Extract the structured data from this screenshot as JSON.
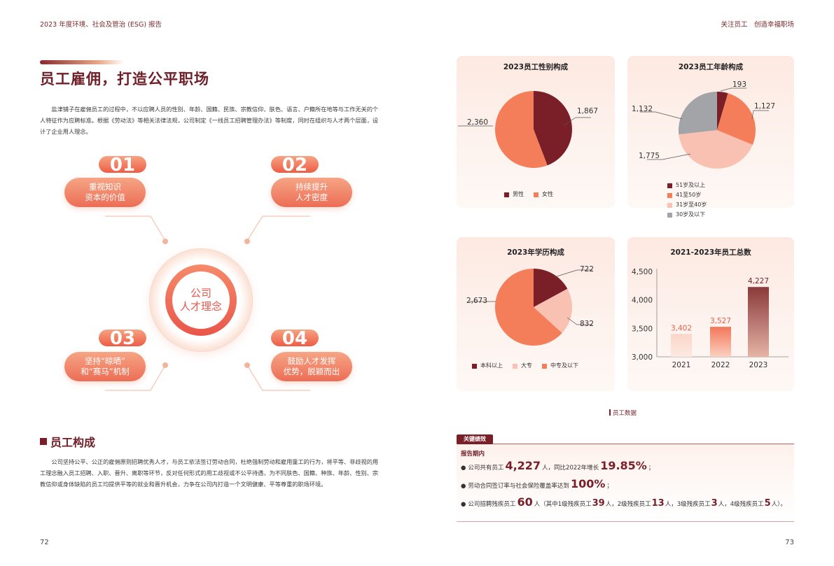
{
  "header": {
    "left": "2023 年度环境、社会及管治 (ESG) 报告",
    "right": "关注员工　创造幸福职场"
  },
  "page_numbers": {
    "left": "72",
    "right": "73"
  },
  "main_title": "员工雇佣，打造公平职场",
  "intro_paragraph": "盐津铺子在雇佣员工的过程中，不以应聘人员的性别、年龄、国籍、民族、宗教信仰、肤色、语言、户籍所在地等与工作无关的个人特征作为应聘标准。根据《劳动法》等相关法律法规，公司制定《一线员工招聘管理办法》等制度，同时在组织与人才两个层面，设计了企业用人理念。",
  "concept": {
    "center_line1": "公司",
    "center_line2": "人才理念",
    "items": [
      {
        "index": "01",
        "line1": "重视知识",
        "line2": "资本的价值"
      },
      {
        "index": "02",
        "line1": "持续提升",
        "line2": "人才密度"
      },
      {
        "index": "03",
        "line1": "坚持“晾晒”",
        "line2": "和“赛马”机制"
      },
      {
        "index": "04",
        "line1": "鼓励人才发挥",
        "line2": "优势，脱颖而出"
      }
    ]
  },
  "section2": {
    "title": "员工构成",
    "paragraph": "公司坚持公平、公正的雇佣原则招聘优秀人才，与员工依法签订劳动合同，杜绝强制劳动和雇用童工的行为，将平等、非歧视的用工理念融入员工招聘、入职、晋升、离职等环节，反对任何形式的用工歧视或不公平待遇，为不同肤色、国籍、种族、年龄、性别、宗教信仰或身体缺陷的员工均提供平等的就业和晋升机会，力争在公司内打造一个文明健康、平等尊重的职场环境。"
  },
  "colors": {
    "dark_red": "#7a1e28",
    "coral": "#f47e5a",
    "light_pink": "#f9c1b2",
    "gray": "#a3a4a8"
  },
  "chart_data": [
    {
      "type": "pie",
      "title": "2023员工性别构成",
      "labels": [
        "男性",
        "女性"
      ],
      "values": [
        1867,
        2360
      ],
      "value_labels": [
        "1,867",
        "2,360"
      ],
      "colors": [
        "#7a1e28",
        "#f47e5a"
      ]
    },
    {
      "type": "pie",
      "title": "2023员工年龄构成",
      "labels": [
        "51岁及以上",
        "41至50岁",
        "31岁至40岁",
        "30岁及以下"
      ],
      "values": [
        193,
        1127,
        1775,
        1132
      ],
      "value_labels": [
        "193",
        "1,127",
        "1,775",
        "1,132"
      ],
      "colors": [
        "#7a1e28",
        "#f47e5a",
        "#f9c1b2",
        "#a3a4a8"
      ]
    },
    {
      "type": "pie",
      "title": "2023年学历构成",
      "labels": [
        "本科以上",
        "大专",
        "中专及以下"
      ],
      "values": [
        722,
        832,
        2673
      ],
      "value_labels": [
        "722",
        "832",
        "2,673"
      ],
      "colors": [
        "#7a1e28",
        "#f9c1b2",
        "#f47e5a"
      ]
    },
    {
      "type": "bar",
      "title": "2021-2023年员工总数",
      "categories": [
        "2021",
        "2022",
        "2023"
      ],
      "values": [
        3402,
        3527,
        4227
      ],
      "value_labels": [
        "3,402",
        "3,527",
        "4,227"
      ],
      "ylim": [
        3000,
        4500
      ],
      "yticks": [
        3000,
        3500,
        4000,
        4500
      ],
      "ytick_labels": [
        "3,000",
        "3,500",
        "4,000",
        "4,500"
      ],
      "grid": false
    }
  ],
  "source_label": "员工数据",
  "key_performance": {
    "tag": "关键绩效",
    "subtitle": "报告期内",
    "row1": {
      "a": "公司共有员工",
      "b": "4,227",
      "c": "人，同比2022年增长",
      "d": "19.85%",
      "e": "；"
    },
    "row2": {
      "a": "劳动合同签订率与社会保险覆盖率达到",
      "b": "100%",
      "c": "；"
    },
    "row3": {
      "a": "公司招聘残疾员工",
      "b": "60",
      "c": "人（其中1级残疾员工",
      "d": "39",
      "e": "人，2级残疾员工",
      "f": "13",
      "g": "人，3级残疾员工",
      "h": "3",
      "i": "人，4级残疾员工",
      "j": "5",
      "k": "人）。"
    }
  }
}
